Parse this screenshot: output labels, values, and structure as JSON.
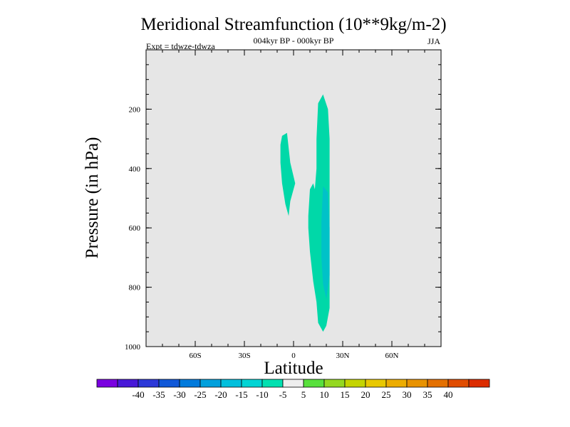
{
  "chart_data": {
    "type": "contour",
    "title": "Meridional Streamfunction (10**9kg/m-2)",
    "subtitle_center": "004kyr BP - 000kyr BP",
    "subtitle_left": "Expt = tdwze-tdwza",
    "subtitle_right": "JJA",
    "xlabel": "Latitude",
    "ylabel": "Pressure (in hPa)",
    "xlim": [
      -90,
      90
    ],
    "ylim": [
      0,
      1000
    ],
    "y_inverted": true,
    "x_ticks": [
      {
        "value": -60,
        "label": "60S"
      },
      {
        "value": -30,
        "label": "30S"
      },
      {
        "value": 0,
        "label": "0"
      },
      {
        "value": 30,
        "label": "30N"
      },
      {
        "value": 60,
        "label": "60N"
      }
    ],
    "y_ticks": [
      {
        "value": 200,
        "label": "200"
      },
      {
        "value": 400,
        "label": "400"
      },
      {
        "value": 600,
        "label": "600"
      },
      {
        "value": 800,
        "label": "800"
      },
      {
        "value": 1000,
        "label": "1000"
      }
    ],
    "background_color": "#e6e6e6",
    "contour_regions": [
      {
        "level_range": [
          -10,
          -5
        ],
        "color": "#00d8a8",
        "polygon": [
          [
            -7,
            290
          ],
          [
            -4,
            280
          ],
          [
            -2,
            380
          ],
          [
            1,
            450
          ],
          [
            -2,
            510
          ],
          [
            -3,
            560
          ],
          [
            -5,
            520
          ],
          [
            -7,
            450
          ],
          [
            -8,
            380
          ],
          [
            -8,
            320
          ]
        ]
      },
      {
        "level_range": [
          -10,
          -5
        ],
        "color": "#00d8a8",
        "polygon": [
          [
            15,
            180
          ],
          [
            18,
            150
          ],
          [
            21,
            200
          ],
          [
            22,
            300
          ],
          [
            22,
            450
          ],
          [
            22,
            560
          ],
          [
            22,
            700
          ],
          [
            22,
            870
          ],
          [
            20,
            930
          ],
          [
            18,
            950
          ],
          [
            15,
            920
          ],
          [
            14,
            850
          ],
          [
            12,
            780
          ],
          [
            10,
            680
          ],
          [
            9,
            600
          ],
          [
            9,
            560
          ],
          [
            10,
            470
          ],
          [
            12,
            450
          ],
          [
            13,
            470
          ],
          [
            14,
            400
          ],
          [
            14,
            300
          ]
        ]
      },
      {
        "level_range": [
          -15,
          -10
        ],
        "color": "#00c2c8",
        "polygon": [
          [
            18,
            460
          ],
          [
            21,
            480
          ],
          [
            22,
            600
          ],
          [
            22,
            760
          ],
          [
            20,
            840
          ],
          [
            18,
            790
          ],
          [
            17,
            700
          ],
          [
            17,
            580
          ]
        ]
      }
    ],
    "colorbar": {
      "colors": [
        "#7a00e0",
        "#4818d8",
        "#2c38d8",
        "#1058d8",
        "#007adc",
        "#00a0dc",
        "#00bfdc",
        "#00d4d4",
        "#00e0b0",
        "#eeeeee",
        "#58e03c",
        "#94d820",
        "#c4d400",
        "#e8c800",
        "#ecac00",
        "#e89200",
        "#e47000",
        "#e04c00",
        "#dc2c00"
      ],
      "labels": [
        "-40",
        "-35",
        "-30",
        "-25",
        "-20",
        "-15",
        "-10",
        "-5",
        "5",
        "10",
        "15",
        "20",
        "25",
        "30",
        "35",
        "40"
      ]
    }
  }
}
